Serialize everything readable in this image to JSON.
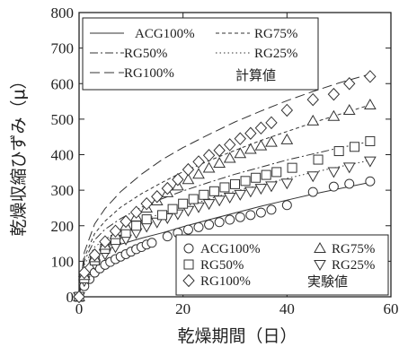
{
  "chart_data": {
    "type": "scatter",
    "xlabel": "乾燥期間（日）",
    "ylabel": "乾燥収縮ひずみ（μ）",
    "xlim": [
      0,
      60
    ],
    "ylim": [
      0,
      800
    ],
    "x_ticks": [
      0,
      20,
      40,
      60
    ],
    "y_ticks": [
      0,
      100,
      200,
      300,
      400,
      500,
      600,
      700,
      800
    ],
    "grid": false,
    "line_legend": {
      "position": "top-left",
      "entries": [
        {
          "name": "ACG100%",
          "style": "solid"
        },
        {
          "name": "RG75%",
          "style": "short-dash"
        },
        {
          "name": "RG50%",
          "style": "dash-dot"
        },
        {
          "name": "RG25%",
          "style": "dotted"
        },
        {
          "name": "RG100%",
          "style": "long-dash"
        }
      ],
      "note": "計算値"
    },
    "marker_legend": {
      "position": "bottom-right",
      "entries": [
        {
          "name": "ACG100%",
          "marker": "circle"
        },
        {
          "name": "RG75%",
          "marker": "triangle-up"
        },
        {
          "name": "RG50%",
          "marker": "square"
        },
        {
          "name": "RG25%",
          "marker": "triangle-down"
        },
        {
          "name": "RG100%",
          "marker": "diamond"
        }
      ],
      "note": "実験値"
    },
    "calculated_series": [
      {
        "name": "ACG100%",
        "style": "solid",
        "x": [
          0,
          1,
          3,
          5,
          8,
          12,
          16,
          20,
          25,
          30,
          35,
          40,
          45,
          50,
          56
        ],
        "y": [
          0,
          80,
          112,
          130,
          148,
          165,
          180,
          197,
          217,
          236,
          255,
          272,
          289,
          304,
          322
        ]
      },
      {
        "name": "RG25%",
        "style": "dotted",
        "x": [
          0,
          1,
          3,
          5,
          8,
          12,
          16,
          20,
          25,
          30,
          35,
          40,
          45,
          50,
          56
        ],
        "y": [
          0,
          90,
          140,
          162,
          187,
          215,
          235,
          253,
          275,
          297,
          315,
          333,
          350,
          366,
          384
        ]
      },
      {
        "name": "RG50%",
        "style": "dash-dot",
        "x": [
          0,
          1,
          3,
          5,
          8,
          12,
          16,
          20,
          25,
          30,
          35,
          40,
          45,
          50,
          56
        ],
        "y": [
          0,
          100,
          160,
          190,
          220,
          252,
          276,
          298,
          322,
          345,
          365,
          385,
          402,
          419,
          437
        ]
      },
      {
        "name": "RG75%",
        "style": "short-dash",
        "x": [
          0,
          1,
          3,
          5,
          8,
          12,
          16,
          20,
          25,
          30,
          35,
          40,
          45,
          50,
          56
        ],
        "y": [
          0,
          110,
          178,
          213,
          252,
          290,
          322,
          352,
          383,
          412,
          440,
          465,
          490,
          513,
          540
        ]
      },
      {
        "name": "RG100%",
        "style": "long-dash",
        "x": [
          0,
          1,
          3,
          5,
          8,
          12,
          16,
          20,
          25,
          30,
          35,
          40,
          45,
          50,
          56
        ],
        "y": [
          0,
          125,
          205,
          248,
          296,
          345,
          386,
          420,
          457,
          492,
          523,
          552,
          578,
          602,
          627
        ]
      }
    ],
    "measured_series": [
      {
        "name": "ACG100%",
        "marker": "circle",
        "x": [
          0,
          1,
          2,
          3,
          4,
          5,
          6,
          7,
          8,
          9,
          10,
          11,
          12,
          13,
          14,
          17,
          19,
          21,
          23,
          25,
          27,
          29,
          31,
          33,
          35,
          37,
          40,
          45,
          49,
          52,
          56
        ],
        "y": [
          0,
          30,
          50,
          68,
          80,
          90,
          98,
          106,
          113,
          120,
          127,
          134,
          140,
          147,
          152,
          170,
          180,
          189,
          196,
          203,
          210,
          217,
          224,
          230,
          237,
          245,
          258,
          295,
          310,
          318,
          325
        ]
      },
      {
        "name": "RG25%",
        "marker": "triangle-down",
        "x": [
          0,
          1,
          3,
          5,
          7,
          9,
          11,
          13,
          15,
          17,
          19,
          21,
          23,
          25,
          27,
          29,
          31,
          33,
          35,
          37,
          40,
          45,
          49,
          52,
          56
        ],
        "y": [
          0,
          45,
          92,
          120,
          140,
          162,
          180,
          198,
          210,
          222,
          233,
          243,
          253,
          262,
          272,
          280,
          288,
          297,
          305,
          312,
          320,
          340,
          352,
          365,
          382
        ]
      },
      {
        "name": "RG50%",
        "marker": "square",
        "x": [
          0,
          1,
          3,
          5,
          7,
          9,
          11,
          13,
          16,
          18,
          20,
          22,
          24,
          26,
          28,
          30,
          32,
          34,
          36,
          38,
          41,
          46,
          50,
          53,
          56
        ],
        "y": [
          0,
          52,
          102,
          135,
          160,
          180,
          200,
          218,
          230,
          247,
          262,
          275,
          287,
          297,
          308,
          317,
          326,
          335,
          343,
          351,
          363,
          386,
          410,
          422,
          438
        ]
      },
      {
        "name": "RG75%",
        "marker": "triangle-up",
        "x": [
          0,
          1,
          3,
          5,
          7,
          9,
          11,
          13,
          15,
          17,
          19,
          21,
          23,
          25,
          27,
          29,
          31,
          33,
          35,
          37,
          40,
          45,
          49,
          52,
          56
        ],
        "y": [
          0,
          60,
          110,
          145,
          175,
          200,
          225,
          250,
          270,
          293,
          312,
          330,
          345,
          362,
          376,
          390,
          403,
          415,
          425,
          435,
          442,
          495,
          508,
          525,
          540
        ]
      },
      {
        "name": "RG100%",
        "marker": "diamond",
        "x": [
          0,
          1,
          3,
          5,
          7,
          9,
          11,
          13,
          15,
          17,
          19,
          21,
          23,
          25,
          27,
          29,
          31,
          33,
          35,
          37,
          40,
          45,
          49,
          52,
          56
        ],
        "y": [
          0,
          68,
          118,
          155,
          185,
          212,
          238,
          262,
          282,
          305,
          330,
          358,
          380,
          398,
          412,
          428,
          445,
          460,
          475,
          490,
          525,
          555,
          570,
          600,
          620
        ]
      }
    ]
  }
}
